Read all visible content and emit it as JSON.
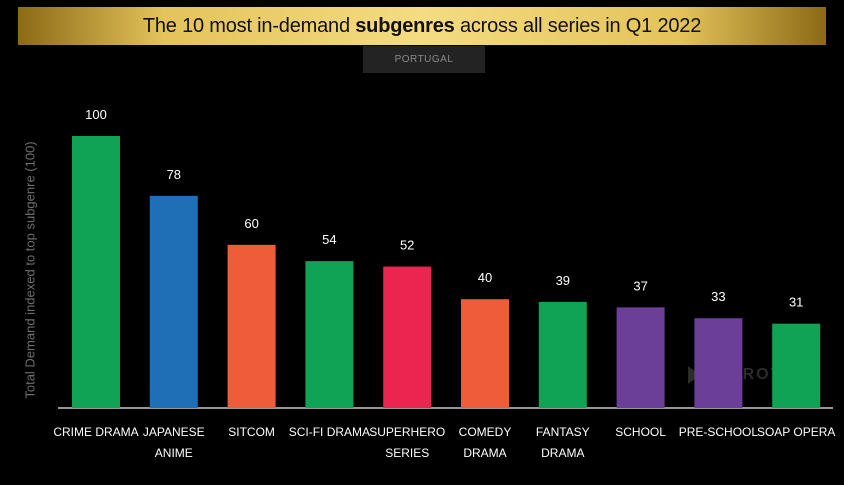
{
  "header": {
    "title_pre": "The 10 most in-demand ",
    "title_bold": "subgenres",
    "title_post": " across all series in Q1 2022",
    "region": "PORTUGAL"
  },
  "watermark": {
    "text": "PARROT"
  },
  "colors": {
    "green": "#10a356",
    "blue": "#1e6fb6",
    "orange": "#ee5c3a",
    "red": "#ec2550",
    "purple": "#6b3f98",
    "axis": "#c8c8c8"
  },
  "chart_data": {
    "type": "bar",
    "title": "The 10 most in-demand subgenres across all series in Q1 2022",
    "ylabel": "Total Demand indexed to top subgenre (100)",
    "ylim": [
      0,
      100
    ],
    "grid": false,
    "categories": [
      [
        "CRIME DRAMA"
      ],
      [
        "JAPANESE",
        "ANIME"
      ],
      [
        "SITCOM"
      ],
      [
        "SCI-FI DRAMA"
      ],
      [
        "SUPERHERO",
        "SERIES"
      ],
      [
        "COMEDY",
        "DRAMA"
      ],
      [
        "FANTASY",
        "DRAMA"
      ],
      [
        "SCHOOL"
      ],
      [
        "PRE-SCHOOL"
      ],
      [
        "SOAP OPERA"
      ]
    ],
    "values": [
      100,
      78,
      60,
      54,
      52,
      40,
      39,
      37,
      33,
      31
    ],
    "bar_colors": [
      "#10a356",
      "#1e6fb6",
      "#ee5c3a",
      "#10a356",
      "#ec2550",
      "#ee5c3a",
      "#10a356",
      "#6b3f98",
      "#6b3f98",
      "#10a356"
    ]
  }
}
